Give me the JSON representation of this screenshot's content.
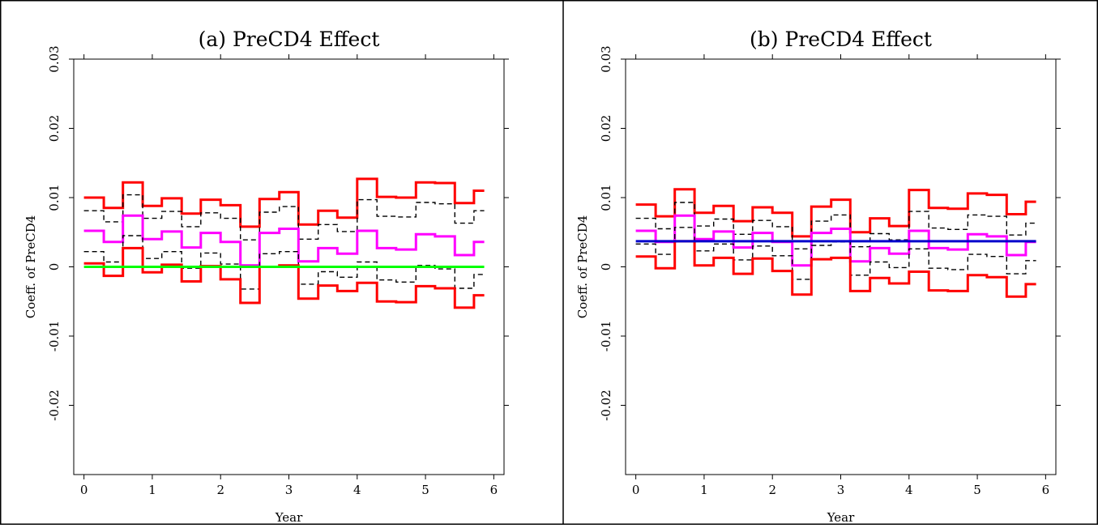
{
  "chart_data": [
    {
      "type": "line",
      "title": "(a) PreCD4 Effect",
      "xlabel": "Year",
      "ylabel": "Coeff. of PreCD4",
      "xlim": [
        -0.15,
        6.15
      ],
      "ylim": [
        -0.03,
        0.03
      ],
      "xticks": [
        0,
        1,
        2,
        3,
        4,
        5,
        6
      ],
      "xtick_labels": [
        "0",
        "1",
        "2",
        "3",
        "4",
        "5",
        "6"
      ],
      "yticks": [
        -0.02,
        -0.01,
        0,
        0.01,
        0.02,
        0.03
      ],
      "ytick_labels": [
        "-0.02",
        "-0.01",
        "0",
        "0.01",
        "0.02",
        "0.03"
      ],
      "grid": false,
      "x": [
        0,
        0.29,
        0.57,
        0.86,
        1.14,
        1.43,
        1.71,
        2.0,
        2.29,
        2.57,
        2.86,
        3.14,
        3.43,
        3.71,
        4.0,
        4.29,
        4.57,
        4.86,
        5.14,
        5.43,
        5.71
      ],
      "x_end": 5.86,
      "series": [
        {
          "color": "#ff0000",
          "style": "solid",
          "values": [
            0.01,
            0.0085,
            0.0122,
            0.0088,
            0.0099,
            0.0077,
            0.0097,
            0.0089,
            0.0058,
            0.0098,
            0.0108,
            0.0061,
            0.0081,
            0.0071,
            0.0127,
            0.0101,
            0.01,
            0.0122,
            0.0121,
            0.0092,
            0.011
          ]
        },
        {
          "color": "#000000",
          "style": "dashed",
          "values": [
            0.0081,
            0.0065,
            0.0104,
            0.007,
            0.008,
            0.0058,
            0.0078,
            0.007,
            0.0039,
            0.0079,
            0.0087,
            0.004,
            0.0061,
            0.0051,
            0.0097,
            0.0073,
            0.0072,
            0.0093,
            0.0091,
            0.0063,
            0.0081
          ]
        },
        {
          "color": "#ff00ff",
          "style": "solid",
          "values": [
            0.0052,
            0.0036,
            0.0074,
            0.004,
            0.0051,
            0.0028,
            0.0049,
            0.0036,
            0.0002,
            0.0049,
            0.0055,
            0.0008,
            0.0027,
            0.0019,
            0.0052,
            0.0027,
            0.0025,
            0.0047,
            0.0044,
            0.0017,
            0.0036
          ]
        },
        {
          "color": "#000000",
          "style": "dashed",
          "values": [
            0.0022,
            0.0007,
            0.0045,
            0.0012,
            0.0022,
            -0.0002,
            0.002,
            0.0004,
            -0.0032,
            0.0019,
            0.0022,
            -0.0025,
            -0.0007,
            -0.0015,
            0.0007,
            -0.0019,
            -0.0022,
            0.0002,
            -0.0003,
            -0.0031,
            -0.0011
          ]
        },
        {
          "color": "#ff0000",
          "style": "solid",
          "values": [
            0.0005,
            -0.0013,
            0.0027,
            -0.0008,
            0.0003,
            -0.0021,
            0.0001,
            -0.0018,
            -0.0052,
            0.0,
            0.0002,
            -0.0046,
            -0.0027,
            -0.0035,
            -0.0023,
            -0.005,
            -0.0051,
            -0.0028,
            -0.0031,
            -0.0059,
            -0.0041
          ]
        }
      ],
      "reference_line": {
        "color": "#00ff00",
        "value": 0.0
      }
    },
    {
      "type": "line",
      "title": "(b) PreCD4 Effect",
      "xlabel": "Year",
      "ylabel": "Coeff. of PreCD4",
      "xlim": [
        -0.15,
        6.15
      ],
      "ylim": [
        -0.03,
        0.03
      ],
      "xticks": [
        0,
        1,
        2,
        3,
        4,
        5,
        6
      ],
      "xtick_labels": [
        "0",
        "1",
        "2",
        "3",
        "4",
        "5",
        "6"
      ],
      "yticks": [
        -0.02,
        -0.01,
        0,
        0.01,
        0.02,
        0.03
      ],
      "ytick_labels": [
        "-0.02",
        "-0.01",
        "0",
        "0.01",
        "0.02",
        "0.03"
      ],
      "grid": false,
      "x": [
        0,
        0.29,
        0.57,
        0.86,
        1.14,
        1.43,
        1.71,
        2.0,
        2.29,
        2.57,
        2.86,
        3.14,
        3.43,
        3.71,
        4.0,
        4.29,
        4.57,
        4.86,
        5.14,
        5.43,
        5.71
      ],
      "x_end": 5.86,
      "series": [
        {
          "color": "#ff0000",
          "style": "solid",
          "values": [
            0.009,
            0.0073,
            0.0112,
            0.0078,
            0.0088,
            0.0066,
            0.0086,
            0.0078,
            0.0044,
            0.0087,
            0.0097,
            0.005,
            0.007,
            0.0059,
            0.0111,
            0.0085,
            0.0084,
            0.0106,
            0.0104,
            0.0076,
            0.0094
          ]
        },
        {
          "color": "#000000",
          "style": "dashed",
          "values": [
            0.007,
            0.0055,
            0.0093,
            0.0059,
            0.0069,
            0.0047,
            0.0067,
            0.0058,
            0.0026,
            0.0066,
            0.0075,
            0.0029,
            0.0048,
            0.0039,
            0.008,
            0.0056,
            0.0054,
            0.0075,
            0.0073,
            0.0046,
            0.0063
          ]
        },
        {
          "color": "#ff00ff",
          "style": "solid",
          "values": [
            0.0052,
            0.0036,
            0.0074,
            0.004,
            0.0051,
            0.0028,
            0.0049,
            0.0036,
            0.0002,
            0.0049,
            0.0055,
            0.0008,
            0.0027,
            0.0019,
            0.0052,
            0.0027,
            0.0025,
            0.0047,
            0.0044,
            0.0017,
            0.0036
          ]
        },
        {
          "color": "#000000",
          "style": "dashed",
          "values": [
            0.0033,
            0.0018,
            0.0057,
            0.0023,
            0.0033,
            0.001,
            0.003,
            0.0016,
            -0.0018,
            0.0031,
            0.0036,
            -0.0012,
            0.0007,
            -0.0001,
            0.0026,
            -0.0002,
            -0.0004,
            0.0018,
            0.0015,
            -0.001,
            0.0009
          ]
        },
        {
          "color": "#ff0000",
          "style": "solid",
          "values": [
            0.0015,
            -0.0002,
            0.0037,
            0.0002,
            0.0013,
            -0.001,
            0.0012,
            -0.0006,
            -0.004,
            0.0011,
            0.0013,
            -0.0035,
            -0.0016,
            -0.0024,
            -0.0007,
            -0.0034,
            -0.0035,
            -0.0012,
            -0.0015,
            -0.0043,
            -0.0025
          ]
        }
      ],
      "reference_line": {
        "color": "#0000cc",
        "value": 0.0037
      }
    }
  ]
}
